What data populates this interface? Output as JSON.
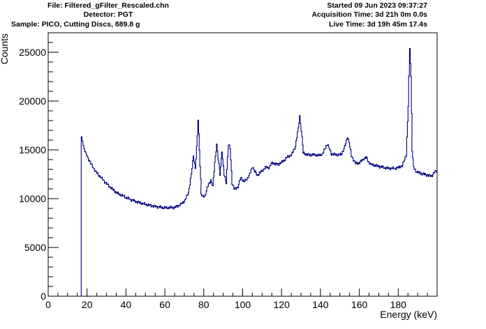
{
  "header": {
    "file": "File: Filtered_gFilter_Rescaled.chn",
    "detector": "Detector: PGT",
    "sample": "Sample: PICO, Cutting Discs, 889.8 g",
    "started": "Started 09 Jun 2023 09:37:27",
    "acquisition_time": "Acquisition Time: 3d 21h 0m 0.0s",
    "live_time": "Live Time: 3d 19h 45m 17.4s"
  },
  "chart_data": {
    "type": "line",
    "xlabel": "Energy (keV)",
    "ylabel": "Counts",
    "xlim": [
      0,
      200
    ],
    "ylim": [
      0,
      27000
    ],
    "x_ticks": [
      0,
      20,
      40,
      60,
      80,
      100,
      120,
      140,
      160,
      180
    ],
    "y_ticks": [
      0,
      5000,
      10000,
      15000,
      20000,
      25000
    ],
    "grid": false,
    "line_color": "#000080",
    "series": [
      {
        "x": [
          17,
          17.5,
          18,
          19,
          20,
          22,
          25,
          30,
          35,
          40,
          45,
          50,
          55,
          60,
          65,
          68,
          70,
          72,
          73.5,
          74.5,
          75.5,
          76.5,
          77,
          77.6,
          78.5,
          79.5,
          80.5,
          82,
          83.5,
          84.5,
          85.5,
          86.5,
          87.3,
          88.2,
          89.2,
          90.4,
          91.4,
          92.6,
          93.4,
          94.4,
          95.5,
          97.5,
          98.8,
          100.5,
          102,
          103.5,
          105,
          106,
          107.5,
          109.5,
          111.5,
          113.5,
          115,
          117,
          119,
          121,
          123,
          125,
          127,
          128.5,
          129.2,
          130,
          131,
          133,
          135,
          137,
          139,
          141,
          142.8,
          143.5,
          144.3,
          145.5,
          148,
          150.5,
          152.5,
          153.8,
          154.6,
          155.8,
          158,
          160,
          162,
          163.5,
          164.5,
          166,
          168,
          170,
          172,
          175,
          178,
          180,
          182,
          184,
          185,
          185.8,
          186.4,
          187,
          187.8,
          189,
          191,
          193,
          195,
          197,
          198.5,
          200
        ],
        "y": [
          16200,
          16000,
          15400,
          14700,
          14300,
          13500,
          12600,
          11500,
          10600,
          10100,
          9700,
          9400,
          9200,
          9050,
          9100,
          9400,
          9800,
          10600,
          12500,
          14400,
          13100,
          16300,
          18100,
          15000,
          10400,
          10200,
          10300,
          11300,
          11900,
          11200,
          13700,
          15600,
          14000,
          12500,
          14900,
          12400,
          11700,
          15500,
          15200,
          11600,
          11000,
          11200,
          12200,
          11700,
          12000,
          12500,
          13300,
          12800,
          12400,
          12800,
          13200,
          13200,
          13700,
          13500,
          13600,
          13900,
          14300,
          14500,
          15400,
          17200,
          18500,
          17000,
          14700,
          14500,
          14500,
          14500,
          14400,
          14600,
          15400,
          15600,
          15200,
          14600,
          14500,
          14500,
          15400,
          16400,
          15800,
          14400,
          13600,
          13700,
          14100,
          14200,
          13800,
          13500,
          13400,
          13300,
          13200,
          13100,
          13100,
          13200,
          13400,
          14600,
          19500,
          25400,
          22500,
          15000,
          13200,
          12800,
          12600,
          12500,
          12400,
          12300,
          12700,
          12900
        ]
      }
    ]
  }
}
